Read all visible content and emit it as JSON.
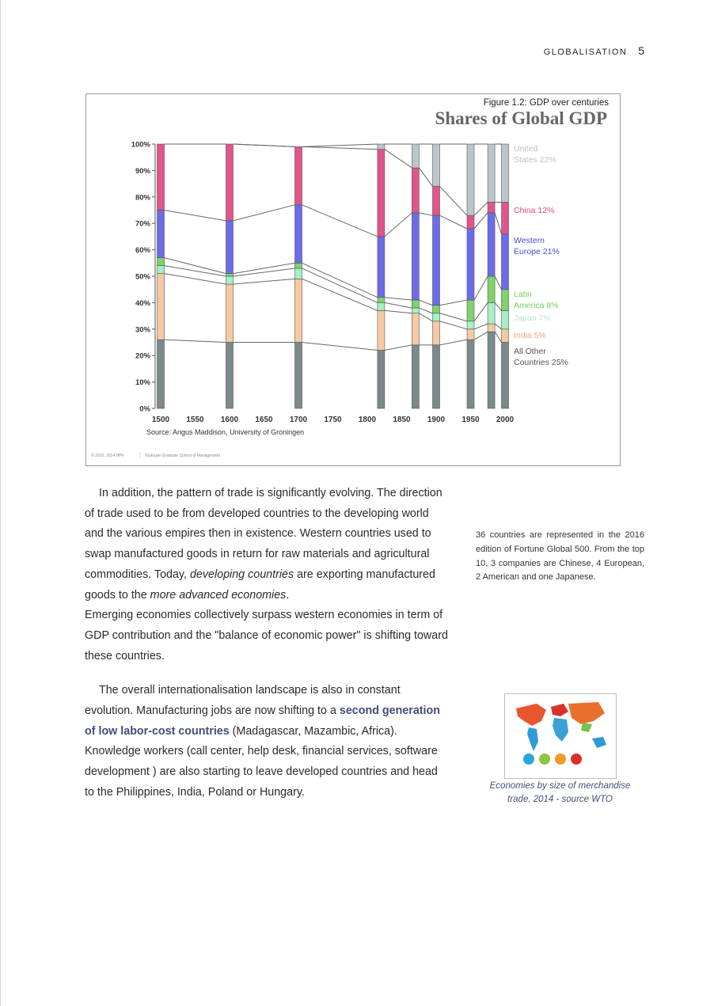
{
  "running_head": {
    "section": "GLOBALISATION",
    "page": "5"
  },
  "figure": {
    "label": "Figure 1.2: GDP over centuries",
    "credit_left": "© 2010, 2014 HPh",
    "credit_right": "Toulouse Graduate School of Management"
  },
  "chart_data": {
    "type": "stacked-bar",
    "title": "Shares of Global GDP",
    "source": "Source: Angus Maddison, University of Groningen",
    "xlim": [
      1500,
      2000
    ],
    "x_ticks": [
      "1500",
      "1550",
      "1600",
      "1650",
      "1700",
      "1750",
      "1800",
      "1850",
      "1900",
      "1950",
      "2000"
    ],
    "ylim": [
      0,
      100
    ],
    "y_ticks": [
      "0%",
      "10%",
      "20%",
      "30%",
      "40%",
      "50%",
      "60%",
      "70%",
      "80%",
      "90%",
      "100%"
    ],
    "x": [
      1500,
      1600,
      1700,
      1820,
      1870,
      1900,
      1950,
      1980,
      2000
    ],
    "series": [
      {
        "name": "All Other Countries 25%",
        "color": "#7a8a8a",
        "values": [
          26,
          25,
          25,
          22,
          24,
          24,
          26,
          29,
          25
        ]
      },
      {
        "name": "India 5%",
        "color": "#f5c9a3",
        "values": [
          25,
          22,
          24,
          15,
          12,
          9,
          4,
          3,
          5
        ]
      },
      {
        "name": "Japan 7%",
        "color": "#a6f0c6",
        "values": [
          3,
          3,
          4,
          3,
          2,
          3,
          3,
          8,
          7
        ]
      },
      {
        "name": "Latin America 8%",
        "color": "#7ed36a",
        "values": [
          3,
          1,
          2,
          2,
          3,
          3,
          8,
          10,
          8
        ]
      },
      {
        "name": "Western Europe 21%",
        "color": "#6c6ce8",
        "values": [
          18,
          20,
          22,
          23,
          33,
          34,
          27,
          24,
          21
        ]
      },
      {
        "name": "China 12%",
        "color": "#e0558a",
        "values": [
          25,
          29,
          22,
          33,
          17,
          11,
          5,
          4,
          12
        ]
      },
      {
        "name": "United States 22%",
        "color": "#bcc5c8",
        "values": [
          0,
          0,
          0,
          2,
          9,
          16,
          27,
          22,
          22
        ]
      }
    ],
    "legend_position": "right",
    "grid": false
  },
  "paragraph1": [
    "In addition, the pattern of trade is significantly evolving. The direction of trade used to be from developed countries to the developing world and the various empires then in existence. Western countries used to swap manufactured goods in return for raw materials and agricultural commodities. Today, ",
    "developing countries",
    " are exporting manufactured goods to the ",
    "more advanced economies",
    "."
  ],
  "paragraph2": "Emerging economies collectively surpass western economies in term of GDP contribution and the \"balance of economic power\" is shifting toward these countries.",
  "paragraph3": [
    "The overall internationalisation landscape is also in constant evolution. Manufacturing jobs are now shifting to a ",
    "second generation of low labor-cost countries",
    " (Madagascar, Mazambic, Africa). Knowledge workers (call center, help desk, financial services, software development ) are also starting to leave developed countries and head to the Philippines, India, Poland or Hungary."
  ],
  "sidenote": "36 countries are represented in the 2016 edition of Fortune Global 500. From the top 10, 3 companies are Chinese, 4 European, 2 American and one Japanese.",
  "thumbnail_caption": "Economies by size of merchandise trade, 2014 - source WTO"
}
